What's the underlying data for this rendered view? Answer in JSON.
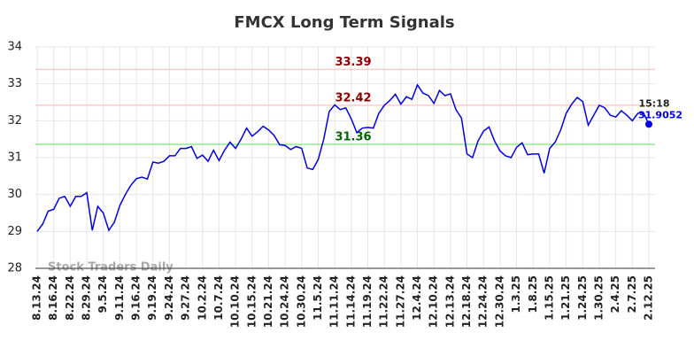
{
  "chart_data": {
    "type": "line",
    "title": "FMCX Long Term Signals",
    "watermark": "Stock Traders Daily",
    "categories": [
      "8.13.24",
      null,
      null,
      "8.16.24",
      null,
      null,
      "8.22.24",
      null,
      null,
      "8.29.24",
      null,
      null,
      "9.5.24",
      null,
      null,
      "9.11.24",
      null,
      null,
      "9.16.24",
      null,
      null,
      "9.19.24",
      null,
      null,
      "9.24.24",
      null,
      null,
      "9.27.24",
      null,
      null,
      "10.2.24",
      null,
      null,
      "10.7.24",
      null,
      null,
      "10.10.24",
      null,
      null,
      "10.15.24",
      null,
      null,
      "10.21.24",
      null,
      null,
      "10.24.24",
      null,
      null,
      "10.30.24",
      null,
      null,
      "11.5.24",
      null,
      null,
      "11.11.24",
      null,
      null,
      "11.14.24",
      null,
      null,
      "11.19.24",
      null,
      null,
      "11.22.24",
      null,
      null,
      "11.27.24",
      null,
      null,
      "12.4.24",
      null,
      null,
      "12.10.24",
      null,
      null,
      "12.13.24",
      null,
      null,
      "12.18.24",
      null,
      null,
      "12.24.24",
      null,
      null,
      "12.30.24",
      null,
      null,
      "1.3.25",
      null,
      null,
      "1.8.25",
      null,
      null,
      "1.15.25",
      null,
      null,
      "1.21.25",
      null,
      null,
      "1.24.25",
      null,
      null,
      "1.30.25",
      null,
      null,
      "2.4.25",
      null,
      null,
      "2.7.25",
      null,
      null,
      "2.12.25"
    ],
    "values": [
      29.0,
      29.2,
      29.55,
      29.6,
      29.9,
      29.95,
      29.68,
      29.95,
      29.95,
      30.05,
      29.03,
      29.68,
      29.5,
      29.03,
      29.25,
      29.7,
      30.0,
      30.25,
      30.43,
      30.47,
      30.42,
      30.88,
      30.85,
      30.9,
      31.05,
      31.05,
      31.25,
      31.25,
      31.3,
      30.98,
      31.07,
      30.9,
      31.2,
      30.92,
      31.2,
      31.42,
      31.25,
      31.5,
      31.8,
      31.58,
      31.7,
      31.85,
      31.75,
      31.6,
      31.35,
      31.33,
      31.22,
      31.3,
      31.25,
      30.72,
      30.68,
      30.95,
      31.5,
      32.25,
      32.43,
      32.3,
      32.35,
      32.05,
      31.68,
      31.8,
      31.82,
      31.8,
      32.2,
      32.42,
      32.55,
      32.72,
      32.45,
      32.65,
      32.58,
      32.97,
      32.75,
      32.68,
      32.47,
      32.82,
      32.68,
      32.73,
      32.3,
      32.07,
      31.1,
      31.0,
      31.45,
      31.72,
      31.83,
      31.45,
      31.18,
      31.05,
      31.0,
      31.28,
      31.4,
      31.08,
      31.1,
      31.1,
      30.58,
      31.25,
      31.42,
      31.75,
      32.2,
      32.45,
      32.63,
      32.52,
      31.88,
      32.15,
      32.42,
      32.35,
      32.15,
      32.1,
      32.27,
      32.15,
      32.0,
      32.2,
      32.22,
      31.9052
    ],
    "color": "#0000ee",
    "last_time": "15:18",
    "hlines": [
      {
        "value": 33.39,
        "color": "#ffcccc",
        "label_color": "#8b0000"
      },
      {
        "value": 32.42,
        "color": "#ffcccc",
        "label_color": "#8b0000"
      },
      {
        "value": 31.36,
        "color": "#90ee90",
        "label_color": "#006400"
      }
    ],
    "ylim": [
      28,
      34
    ],
    "yticks": [
      28,
      29,
      30,
      31,
      32,
      33,
      34
    ],
    "grid": true
  }
}
